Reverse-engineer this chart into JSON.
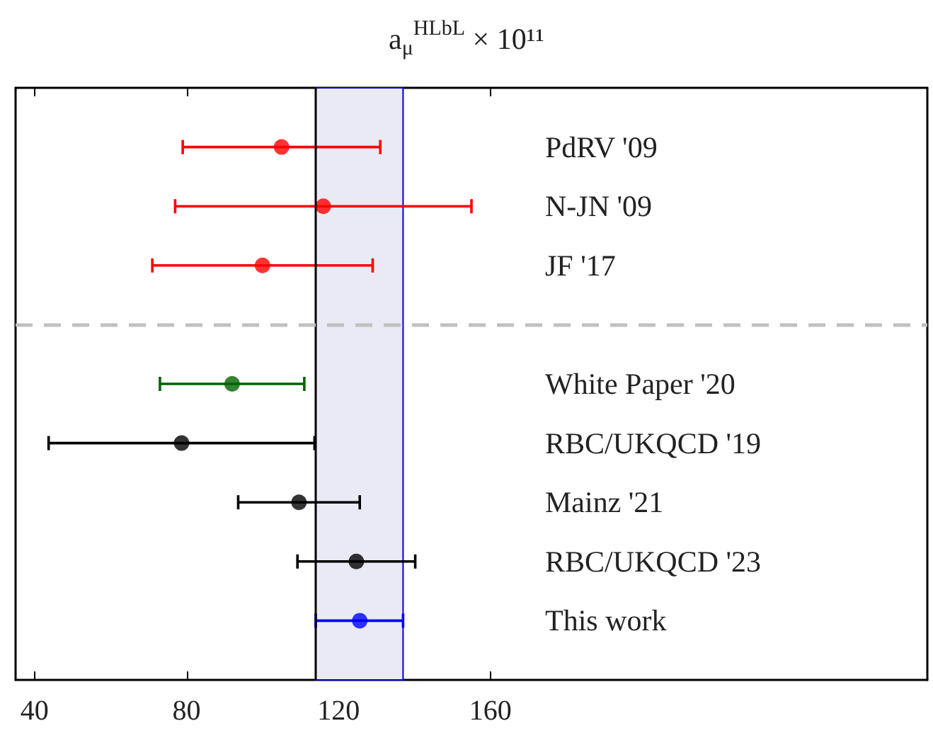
{
  "chart_data": {
    "type": "scatter",
    "orientation": "horizontal",
    "title": "a$_{μ}$$^{HLbL}$ × 10¹¹",
    "categories": [
      "PdRV '09",
      "N-JN '09",
      "JF '17",
      null,
      "White Paper '20",
      "RBC/UKQCD '19",
      "Mainz '21",
      "RBC/UKQCD '23",
      "This work"
    ],
    "values": [
      105,
      116,
      100,
      null,
      92,
      78.7,
      109.6,
      124.7,
      125.6
    ],
    "errors": [
      26,
      39,
      29,
      null,
      19,
      35,
      16,
      15.5,
      [
        114,
        137
      ]
    ],
    "colors": [
      "#ff0000",
      "#ff0000",
      "#ff0000",
      null,
      "#006400",
      "#000000",
      "#000000",
      "#000000",
      "#0000ff"
    ],
    "xlim": [
      35,
      275
    ],
    "xticks": [
      40,
      80,
      120,
      160
    ],
    "marker": "circle",
    "grid": false,
    "ref_lines": [
      {
        "axis": "x",
        "value": 114,
        "color": "#000000",
        "line_style": "solid"
      },
      {
        "axis": "y",
        "value": null,
        "color": "#c0c0c0",
        "line_style": "dashed"
      }
    ],
    "bands": [
      {
        "axis": "x",
        "from": 114,
        "to": 137,
        "color": "#e9eaf5"
      }
    ]
  }
}
